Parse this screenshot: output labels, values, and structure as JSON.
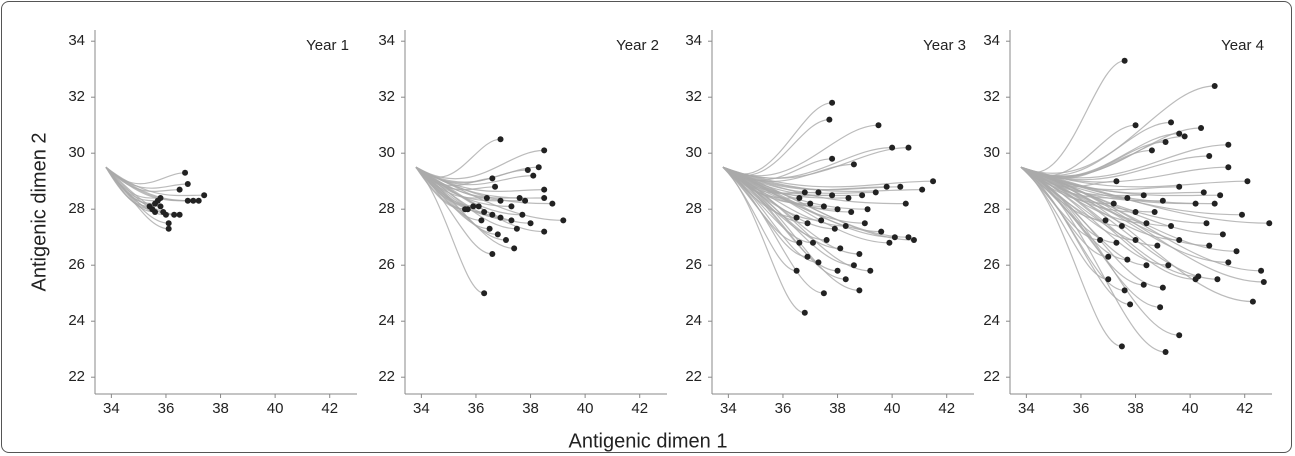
{
  "x_label": "Antigenic dimen 1",
  "y_label": "Antigenic dimen 2",
  "chart_data": [
    {
      "type": "scatter",
      "title": "Year 1",
      "point_color": "#222222",
      "line_color": "#aaaaaa",
      "start_x": 33.8,
      "start_y": 29.5,
      "xlim": [
        33.4,
        43
      ],
      "ylim": [
        21.4,
        34.4
      ],
      "xticks": [
        34,
        36,
        38,
        40,
        42
      ],
      "yticks": [
        22,
        24,
        26,
        28,
        30,
        32,
        34
      ],
      "x": [
        36.7,
        36.5,
        36.8,
        37.4,
        37.2,
        37.0,
        36.8,
        35.6,
        35.5,
        35.8,
        35.9,
        35.7,
        36.0,
        36.3,
        36.5,
        36.1,
        36.1,
        35.4,
        35.6,
        35.8
      ],
      "y": [
        29.3,
        28.7,
        28.9,
        28.5,
        28.3,
        28.3,
        28.3,
        28.2,
        28.0,
        28.1,
        27.9,
        28.3,
        27.8,
        27.8,
        27.8,
        27.5,
        27.3,
        28.1,
        27.9,
        28.4
      ]
    },
    {
      "type": "scatter",
      "title": "Year 2",
      "point_color": "#222222",
      "line_color": "#aaaaaa",
      "start_x": 33.8,
      "start_y": 29.5,
      "xlim": [
        33.4,
        43
      ],
      "ylim": [
        21.4,
        34.4
      ],
      "xticks": [
        34,
        36,
        38,
        40,
        42
      ],
      "yticks": [
        22,
        24,
        26,
        28,
        30,
        32,
        34
      ],
      "x": [
        36.9,
        38.5,
        38.3,
        37.9,
        38.1,
        36.6,
        36.7,
        38.5,
        38.5,
        38.8,
        37.8,
        37.6,
        37.3,
        36.9,
        36.4,
        35.7,
        35.9,
        35.6,
        36.1,
        36.3,
        36.6,
        36.9,
        37.3,
        37.7,
        38.0,
        38.5,
        39.2,
        36.2,
        36.5,
        36.8,
        37.1,
        37.4,
        36.6,
        36.3,
        37.5
      ],
      "y": [
        30.5,
        30.1,
        29.5,
        29.4,
        29.2,
        29.1,
        28.8,
        28.7,
        28.4,
        28.2,
        28.3,
        28.4,
        28.1,
        28.3,
        28.4,
        28.0,
        28.1,
        28.0,
        28.1,
        27.9,
        27.8,
        27.7,
        27.6,
        27.8,
        27.5,
        27.2,
        27.6,
        27.6,
        27.3,
        27.1,
        26.9,
        26.6,
        26.4,
        25.0,
        27.3
      ]
    },
    {
      "type": "scatter",
      "title": "Year 3",
      "point_color": "#222222",
      "line_color": "#aaaaaa",
      "start_x": 33.8,
      "start_y": 29.5,
      "xlim": [
        33.4,
        43
      ],
      "ylim": [
        21.4,
        34.4
      ],
      "xticks": [
        34,
        36,
        38,
        40,
        42
      ],
      "yticks": [
        22,
        24,
        26,
        28,
        30,
        32,
        34
      ],
      "x": [
        37.8,
        37.7,
        39.5,
        40.0,
        40.6,
        37.8,
        38.6,
        41.5,
        41.1,
        40.3,
        39.8,
        39.4,
        38.9,
        38.4,
        37.8,
        37.3,
        36.8,
        36.6,
        37.0,
        37.5,
        38.0,
        38.5,
        39.1,
        40.5,
        36.5,
        36.9,
        37.4,
        37.9,
        38.3,
        39.0,
        39.6,
        40.1,
        40.6,
        40.8,
        36.6,
        37.1,
        37.6,
        38.1,
        38.8,
        39.9,
        36.9,
        37.3,
        38.6,
        39.2,
        38.3,
        37.5,
        38.8,
        36.5,
        36.8,
        38.0
      ],
      "y": [
        31.8,
        31.2,
        31.0,
        30.2,
        30.2,
        29.8,
        29.6,
        29.0,
        28.7,
        28.8,
        28.8,
        28.6,
        28.5,
        28.4,
        28.5,
        28.6,
        28.6,
        28.4,
        28.2,
        28.1,
        28.0,
        27.9,
        28.0,
        28.2,
        27.7,
        27.5,
        27.6,
        27.3,
        27.4,
        27.5,
        27.2,
        27.0,
        27.0,
        26.9,
        26.8,
        26.8,
        26.9,
        26.6,
        26.4,
        26.8,
        26.3,
        26.1,
        26.0,
        25.8,
        25.5,
        25.0,
        25.1,
        25.8,
        24.3,
        25.8
      ]
    },
    {
      "type": "scatter",
      "title": "Year 4",
      "point_color": "#222222",
      "line_color": "#aaaaaa",
      "start_x": 33.8,
      "start_y": 29.5,
      "xlim": [
        33.4,
        43
      ],
      "ylim": [
        21.4,
        34.4
      ],
      "xticks": [
        34,
        36,
        38,
        40,
        42
      ],
      "yticks": [
        22,
        24,
        26,
        28,
        30,
        32,
        34
      ],
      "x": [
        37.6,
        40.9,
        39.3,
        38.0,
        39.8,
        40.4,
        39.6,
        41.4,
        39.1,
        38.6,
        40.7,
        41.4,
        37.3,
        42.1,
        39.6,
        40.5,
        41.1,
        38.3,
        37.7,
        39.0,
        40.2,
        40.9,
        41.9,
        37.2,
        38.0,
        38.7,
        36.9,
        37.5,
        38.4,
        39.3,
        40.6,
        41.2,
        42.9,
        36.7,
        37.3,
        38.0,
        38.8,
        39.6,
        40.7,
        41.7,
        37.0,
        37.7,
        38.4,
        39.2,
        40.3,
        41.4,
        42.6,
        37.0,
        37.6,
        38.3,
        39.0,
        40.2,
        41.0,
        42.7,
        37.8,
        38.9,
        42.3,
        39.6,
        37.5,
        39.1
      ],
      "y": [
        33.3,
        32.4,
        31.1,
        31.0,
        30.6,
        30.9,
        30.7,
        30.3,
        30.4,
        30.1,
        29.9,
        29.5,
        29.0,
        29.0,
        28.8,
        28.6,
        28.5,
        28.5,
        28.4,
        28.3,
        28.2,
        28.2,
        27.8,
        28.2,
        27.9,
        27.9,
        27.6,
        27.4,
        27.5,
        27.4,
        27.5,
        27.1,
        27.5,
        26.9,
        26.8,
        26.9,
        26.7,
        26.9,
        26.7,
        26.5,
        26.3,
        26.2,
        26.0,
        26.0,
        25.6,
        26.1,
        25.8,
        25.5,
        25.1,
        25.3,
        25.2,
        25.5,
        25.5,
        25.4,
        24.6,
        24.5,
        24.7,
        23.5,
        23.1,
        22.9
      ]
    }
  ]
}
